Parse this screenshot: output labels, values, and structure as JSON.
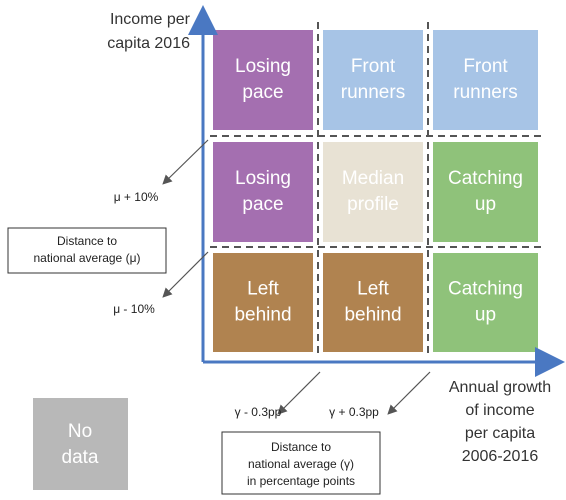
{
  "y_axis": {
    "lines": [
      "Income per",
      "capita 2016"
    ]
  },
  "x_axis": {
    "lines": [
      "Annual growth",
      "of income",
      "per capita",
      "2006-2016"
    ]
  },
  "cells": [
    [
      {
        "lines": [
          "Losing",
          "pace"
        ]
      },
      {
        "lines": [
          "Front",
          "runners"
        ]
      },
      {
        "lines": [
          "Front",
          "runners"
        ]
      }
    ],
    [
      {
        "lines": [
          "Losing",
          "pace"
        ]
      },
      {
        "lines": [
          "Median",
          "profile"
        ]
      },
      {
        "lines": [
          "Catching",
          "up"
        ]
      }
    ],
    [
      {
        "lines": [
          "Left",
          "behind"
        ]
      },
      {
        "lines": [
          "Left",
          "behind"
        ]
      },
      {
        "lines": [
          "Catching",
          "up"
        ]
      }
    ]
  ],
  "y_thresholds": [
    "μ + 10%",
    "μ - 10%"
  ],
  "y_note": {
    "lines": [
      "Distance to",
      "national average (μ)"
    ]
  },
  "x_thresholds": [
    "γ - 0.3pp",
    "γ + 0.3pp"
  ],
  "x_note": {
    "lines": [
      "Distance to",
      "national average (γ)",
      "in percentage points"
    ]
  },
  "no_data": {
    "lines": [
      "No",
      "data"
    ]
  }
}
